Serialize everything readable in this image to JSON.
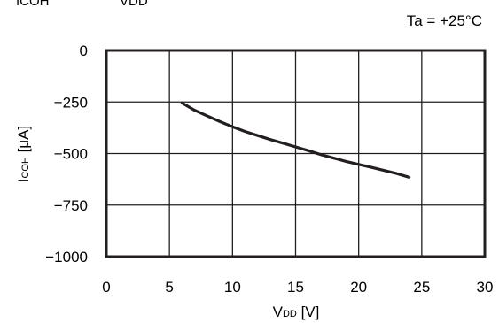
{
  "header_fragment": {
    "left": "ICOH",
    "right": "VDD"
  },
  "condition": "Ta = +25°C",
  "chart_data": {
    "type": "line",
    "xlabel": {
      "main": "V",
      "sub": "DD",
      "unit": " [V]"
    },
    "ylabel": {
      "main": "I",
      "sub": "COH",
      "unit": " [μA]"
    },
    "xlim": [
      0,
      30
    ],
    "ylim": [
      -1000,
      0
    ],
    "x_ticks": [
      "0",
      "5",
      "10",
      "15",
      "20",
      "25",
      "30"
    ],
    "y_ticks": [
      "0",
      "−250",
      "−500",
      "−750",
      "−1000"
    ],
    "x_tick_values": [
      0,
      5,
      10,
      15,
      20,
      25,
      30
    ],
    "y_tick_values": [
      0,
      -250,
      -500,
      -750,
      -1000
    ],
    "grid": true,
    "series": [
      {
        "color": "#231f20",
        "x": [
          6,
          7,
          8,
          9,
          10,
          11,
          12,
          13,
          14,
          15,
          16,
          17,
          18,
          19,
          20,
          21,
          22,
          23,
          24
        ],
        "y": [
          -255,
          -290,
          -318,
          -345,
          -370,
          -393,
          -413,
          -432,
          -450,
          -468,
          -486,
          -505,
          -522,
          -538,
          -553,
          -567,
          -582,
          -597,
          -615
        ]
      }
    ]
  }
}
